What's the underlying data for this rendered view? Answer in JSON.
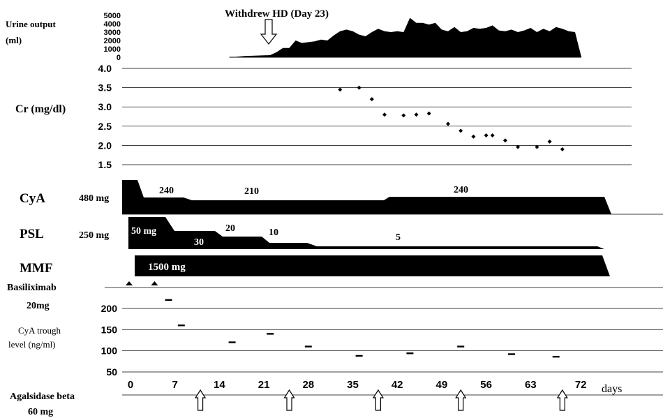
{
  "chart_data": {
    "type": "line",
    "x_axis": {
      "label": "days",
      "ticks": [
        0,
        7,
        14,
        21,
        28,
        35,
        42,
        49,
        56,
        63,
        72
      ]
    },
    "urine_output": {
      "label_line1": "Urine output",
      "label_line2": "(ml)",
      "ticks": [
        "5000",
        "4000",
        "3000",
        "2000",
        "1000",
        "0"
      ],
      "ylim": [
        0,
        5000
      ],
      "annotation": "Withdrew HD (Day 23)",
      "annotation_day": 23,
      "series": [
        [
          16,
          0
        ],
        [
          18,
          150
        ],
        [
          20,
          200
        ],
        [
          22,
          250
        ],
        [
          23,
          600
        ],
        [
          24,
          1100
        ],
        [
          25,
          1100
        ],
        [
          26,
          2000
        ],
        [
          27,
          1700
        ],
        [
          28,
          1800
        ],
        [
          29,
          1900
        ],
        [
          30,
          2100
        ],
        [
          31,
          2000
        ],
        [
          32,
          2600
        ],
        [
          33,
          3100
        ],
        [
          34,
          3300
        ],
        [
          35,
          3100
        ],
        [
          36,
          2700
        ],
        [
          37,
          2500
        ],
        [
          38,
          3000
        ],
        [
          39,
          3400
        ],
        [
          40,
          3100
        ],
        [
          41,
          3000
        ],
        [
          42,
          3100
        ],
        [
          43,
          3000
        ],
        [
          44,
          4700
        ],
        [
          45,
          4100
        ],
        [
          46,
          4100
        ],
        [
          47,
          3900
        ],
        [
          48,
          4100
        ],
        [
          49,
          3300
        ],
        [
          50,
          3100
        ],
        [
          51,
          3600
        ],
        [
          52,
          3000
        ],
        [
          53,
          3100
        ],
        [
          54,
          3500
        ],
        [
          55,
          3400
        ],
        [
          56,
          3500
        ],
        [
          57,
          3800
        ],
        [
          58,
          3200
        ],
        [
          59,
          3100
        ],
        [
          60,
          3300
        ],
        [
          61,
          3000
        ],
        [
          62,
          3200
        ],
        [
          63,
          3500
        ],
        [
          64,
          3000
        ],
        [
          65,
          3400
        ],
        [
          66,
          3100
        ],
        [
          67,
          3600
        ],
        [
          68,
          3400
        ],
        [
          69,
          3100
        ],
        [
          70,
          3000
        ],
        [
          71,
          0
        ]
      ]
    },
    "creatinine": {
      "label": "Cr (mg/dl)",
      "ticks": [
        "4.0",
        "3.5",
        "3.0",
        "2.5",
        "2.0",
        "1.5"
      ],
      "ylim": [
        1.5,
        4.0
      ],
      "points": [
        [
          33,
          3.45
        ],
        [
          36,
          3.5
        ],
        [
          38,
          3.2
        ],
        [
          40,
          2.8
        ],
        [
          43,
          2.78
        ],
        [
          45,
          2.8
        ],
        [
          47,
          2.83
        ],
        [
          50,
          2.56
        ],
        [
          52,
          2.38
        ],
        [
          54,
          2.23
        ],
        [
          56,
          2.26
        ],
        [
          57,
          2.26
        ],
        [
          59,
          2.13
        ],
        [
          61,
          1.96
        ],
        [
          64,
          1.96
        ],
        [
          66,
          2.1
        ],
        [
          68,
          1.9
        ]
      ]
    },
    "cya": {
      "name": "CyA",
      "initial_dose": "480 mg",
      "dose_labels": [
        "240",
        "210",
        "240"
      ]
    },
    "psl": {
      "name": "PSL",
      "initial_dose": "250 mg",
      "dose_labels": [
        "50 mg",
        "30",
        "20",
        "10",
        "5"
      ]
    },
    "mmf": {
      "name": "MMF",
      "dose_label": "1500 mg"
    },
    "basiliximab": {
      "label_line1": "Basiliximab",
      "label_line2": "20mg",
      "days": [
        0,
        4
      ]
    },
    "cya_trough": {
      "label_line1": "CyA trough",
      "label_line2": "level (ng/ml)",
      "ticks": [
        "200",
        "150",
        "100",
        "50"
      ],
      "ylim": [
        50,
        200
      ],
      "points": [
        [
          6,
          220
        ],
        [
          8,
          160
        ],
        [
          16,
          120
        ],
        [
          22,
          140
        ],
        [
          28,
          110
        ],
        [
          36,
          88
        ],
        [
          44,
          94
        ],
        [
          52,
          110
        ],
        [
          60,
          92
        ],
        [
          67,
          86
        ]
      ]
    },
    "agalsidase": {
      "label_line1": "Agalsidase beta",
      "label_line2": "60 mg",
      "days": [
        11,
        25,
        39,
        52,
        68
      ]
    }
  }
}
